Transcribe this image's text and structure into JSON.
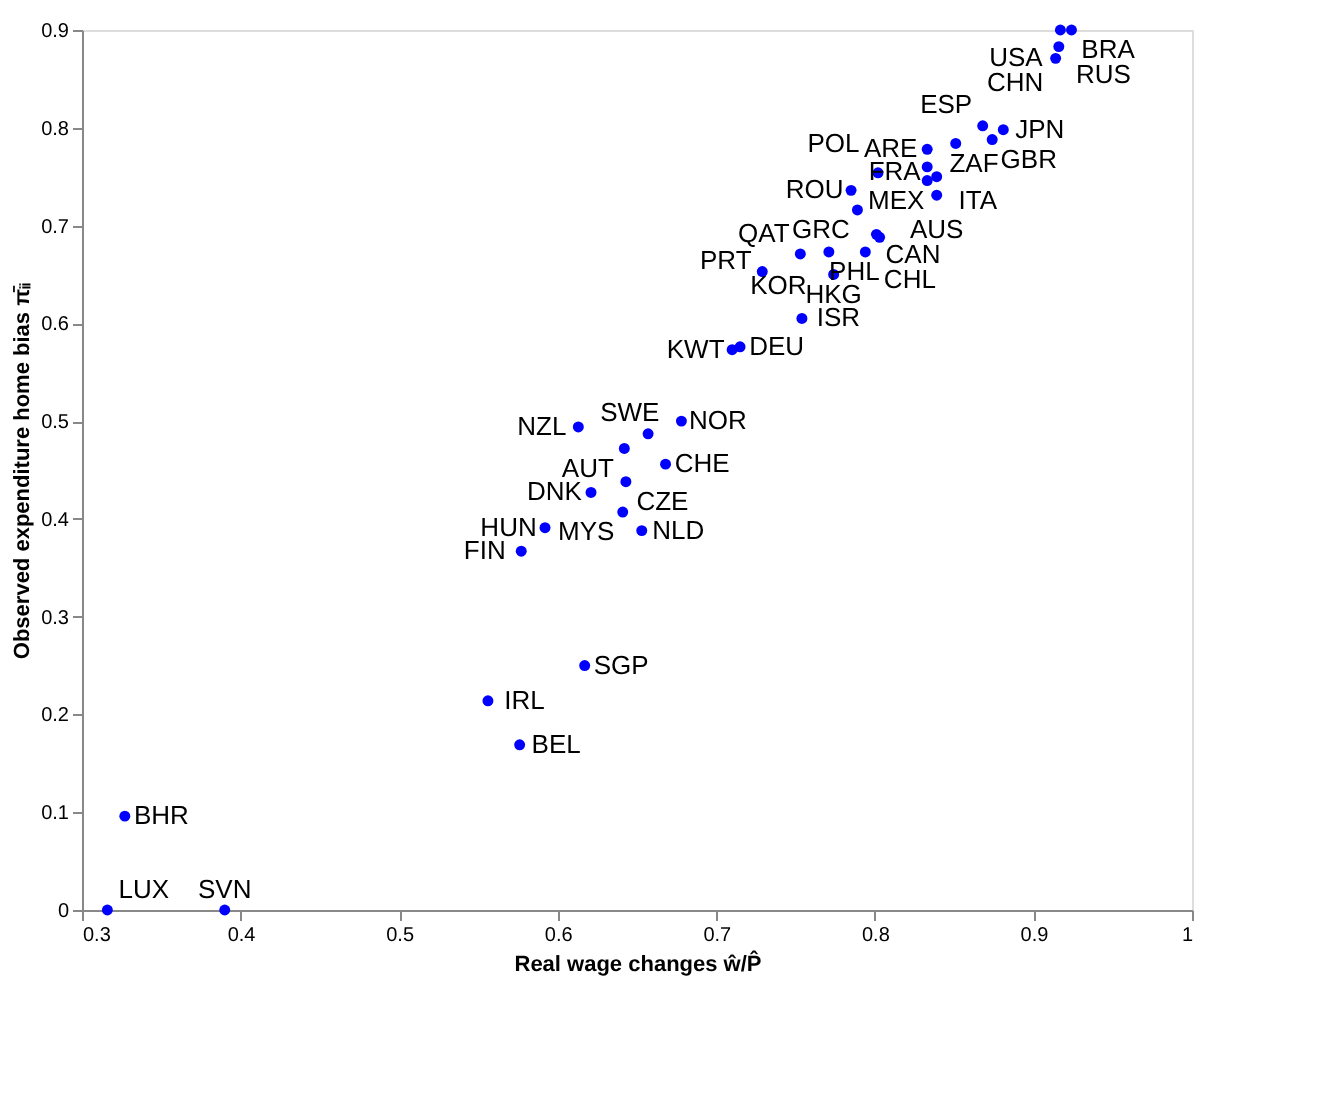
{
  "chart_data": {
    "type": "scatter",
    "xlabel": "Real wage changes ŵ/P̂",
    "ylabel": "Observed expenditure home bias π̄ᵢᵢ",
    "xlim": [
      0.3,
      1
    ],
    "xticks": [
      0.3,
      0.4,
      0.5,
      0.6,
      0.7,
      0.8,
      0.9,
      1
    ],
    "ylim": [
      0,
      0.9
    ],
    "yticks": [
      0,
      0.1,
      0.2,
      0.3,
      0.4,
      0.5,
      0.6,
      0.7,
      0.8,
      0.9
    ],
    "grid": false,
    "marker": "circle",
    "series": [
      {
        "color": "#0000ff",
        "x": [
          0.924,
          0.917,
          0.916,
          0.914,
          0.881,
          0.868,
          0.874,
          0.851,
          0.833,
          0.802,
          0.833,
          0.839,
          0.833,
          0.839,
          0.789,
          0.785,
          0.801,
          0.803,
          0.794,
          0.771,
          0.774,
          0.753,
          0.729,
          0.754,
          0.71,
          0.715,
          0.613,
          0.642,
          0.678,
          0.657,
          0.668,
          0.621,
          0.643,
          0.641,
          0.653,
          0.592,
          0.577,
          0.316,
          0.39,
          0.327,
          0.556,
          0.617,
          0.576
        ],
        "values": [
          0.9,
          0.9,
          0.883,
          0.871,
          0.798,
          0.802,
          0.788,
          0.784,
          0.778,
          0.754,
          0.76,
          0.75,
          0.746,
          0.731,
          0.716,
          0.736,
          0.691,
          0.688,
          0.673,
          0.673,
          0.65,
          0.671,
          0.653,
          0.605,
          0.573,
          0.576,
          0.494,
          0.472,
          0.5,
          0.487,
          0.456,
          0.427,
          0.438,
          0.407,
          0.388,
          0.391,
          0.367,
          0,
          0,
          0.096,
          0.214,
          0.25,
          0.169
        ],
        "value_labels": [
          "BRA",
          "USA",
          "RUS",
          "CHN",
          "JPN",
          "ESP",
          "GBR",
          "ZAF",
          "ARE",
          "POL",
          "ITA",
          "MEX",
          "FRA",
          "AUS",
          "GRC",
          "ROU",
          "CAN",
          "PHL",
          "CHL",
          "KOR",
          "HKG",
          "QAT",
          "PRT",
          "ISR",
          "KWT",
          "DEU",
          "NZL",
          "AUT",
          "NOR",
          "SWE",
          "CHE",
          "DNK",
          "CZE",
          "MYS",
          "NLD",
          "HUN",
          "FIN",
          "LUX",
          "SVN",
          "BHR",
          "IRL",
          "SGP",
          "BEL"
        ]
      }
    ]
  }
}
